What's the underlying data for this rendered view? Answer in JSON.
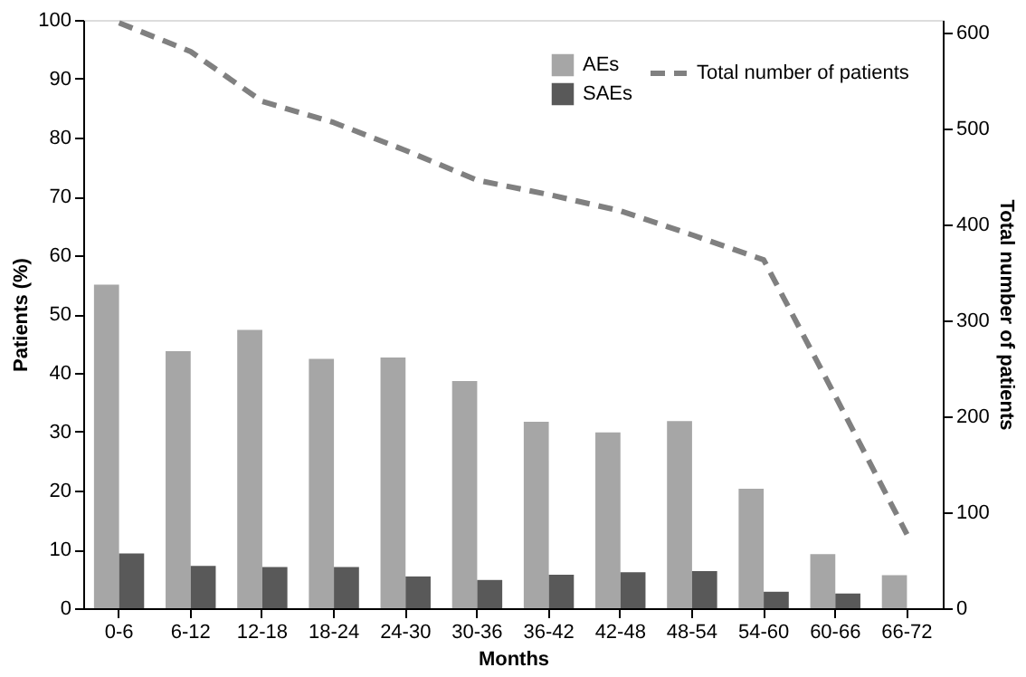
{
  "chart_data": {
    "type": "bar",
    "xlabel": "Months",
    "ylabel": "Patients (%)",
    "y2label": "Total number of patients",
    "categories": [
      "0-6",
      "6-12",
      "12-18",
      "18-24",
      "24-30",
      "30-36",
      "36-42",
      "42-48",
      "48-54",
      "54-60",
      "60-66",
      "66-72"
    ],
    "series": [
      {
        "name": "AEs",
        "color": "#a6a6a6",
        "values": [
          55,
          43.7,
          47.3,
          42.4,
          42.6,
          38.6,
          31.7,
          29.9,
          31.8,
          20.3,
          9.2,
          5.6
        ]
      },
      {
        "name": "SAEs",
        "color": "#595959",
        "values": [
          9.3,
          7.2,
          7.0,
          7.0,
          5.4,
          4.8,
          5.7,
          6.1,
          6.3,
          2.8,
          2.5,
          null
        ]
      },
      {
        "name": "Total number of patients",
        "type": "line",
        "axis": "y2",
        "line_style": "dashed",
        "color": "#808080",
        "values": [
          610,
          580,
          528,
          506,
          477,
          446,
          431,
          414,
          389,
          363,
          221,
          77
        ]
      }
    ],
    "ylim": [
      0,
      100
    ],
    "yticks": [
      0,
      10,
      20,
      30,
      40,
      50,
      60,
      70,
      80,
      90,
      100
    ],
    "y2lim": [
      0,
      613
    ],
    "y2ticks": [
      0,
      100,
      200,
      300,
      400,
      500,
      600
    ],
    "legend": "top right",
    "grid": false
  }
}
